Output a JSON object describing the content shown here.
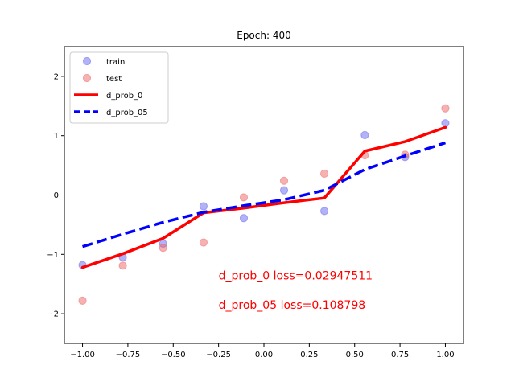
{
  "chart_data": {
    "type": "line",
    "title": "Epoch: 400",
    "xlabel": "",
    "ylabel": "",
    "xlim": [
      -1.1,
      1.1
    ],
    "ylim": [
      -2.5,
      2.5
    ],
    "xticks": [
      -1.0,
      -0.75,
      -0.5,
      -0.25,
      0.0,
      0.25,
      0.5,
      0.75,
      1.0
    ],
    "xtick_labels": [
      "−1.00",
      "−0.75",
      "−0.50",
      "−0.25",
      "0.00",
      "0.25",
      "0.50",
      "0.75",
      "1.00"
    ],
    "yticks": [
      -2,
      -1,
      0,
      1,
      2
    ],
    "ytick_labels": [
      "−2",
      "−1",
      "0",
      "1",
      "2"
    ],
    "grid": false,
    "legend_position": "top-left",
    "series": [
      {
        "name": "train",
        "kind": "scatter",
        "color": "#6666ee",
        "x": [
          -1.0,
          -0.778,
          -0.556,
          -0.333,
          -0.111,
          0.111,
          0.333,
          0.556,
          0.778,
          1.0
        ],
        "y": [
          -1.18,
          -1.05,
          -0.82,
          -0.19,
          -0.39,
          0.08,
          -0.27,
          1.01,
          0.64,
          1.21
        ]
      },
      {
        "name": "test",
        "kind": "scatter",
        "color": "#ee6666",
        "x": [
          -1.0,
          -0.778,
          -0.556,
          -0.333,
          -0.111,
          0.111,
          0.333,
          0.556,
          0.778,
          1.0
        ],
        "y": [
          -1.78,
          -1.19,
          -0.89,
          -0.8,
          -0.04,
          0.24,
          0.36,
          0.67,
          0.68,
          1.46
        ]
      },
      {
        "name": "d_prob_0",
        "kind": "line",
        "style": "solid",
        "color": "#ff0000",
        "x": [
          -1.0,
          -0.778,
          -0.556,
          -0.333,
          -0.111,
          0.111,
          0.333,
          0.556,
          0.778,
          1.0
        ],
        "y": [
          -1.22,
          -0.99,
          -0.73,
          -0.3,
          -0.22,
          -0.13,
          -0.05,
          0.74,
          0.9,
          1.14
        ]
      },
      {
        "name": "d_prob_05",
        "kind": "line",
        "style": "dashed",
        "color": "#0000ff",
        "x": [
          -1.0,
          -0.778,
          -0.556,
          -0.333,
          -0.111,
          0.111,
          0.333,
          0.556,
          0.778,
          1.0
        ],
        "y": [
          -0.87,
          -0.66,
          -0.46,
          -0.29,
          -0.18,
          -0.08,
          0.08,
          0.43,
          0.66,
          0.88
        ]
      }
    ],
    "annotations": [
      {
        "text": "d_prob_0 loss=0.02947511",
        "color": "#ff0000",
        "x": -0.25,
        "y": -1.42
      },
      {
        "text": "d_prob_05 loss=0.108798",
        "color": "#ff0000",
        "x": -0.25,
        "y": -1.92
      }
    ]
  }
}
